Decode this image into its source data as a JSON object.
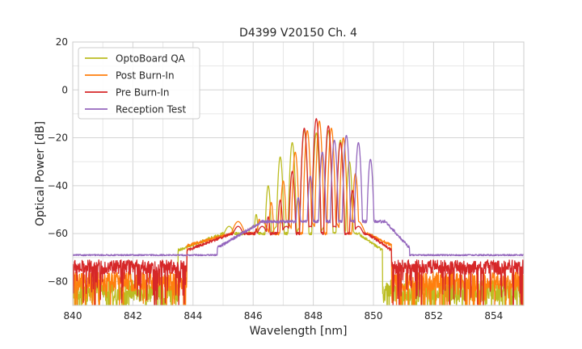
{
  "chart_data": {
    "type": "line",
    "title": "D4399 V20150 Ch. 4",
    "xlabel": "Wavelength [nm]",
    "ylabel": "Optical Power [dB]",
    "xlim": [
      840,
      855
    ],
    "ylim": [
      -90,
      20
    ],
    "xticks": [
      840,
      842,
      844,
      846,
      848,
      850,
      852,
      854
    ],
    "yticks": [
      -80,
      -60,
      -40,
      -20,
      0,
      20
    ],
    "grid": true,
    "legend_position": "top-left",
    "series": [
      {
        "name": "OptoBoard QA",
        "color": "#bcbd22",
        "noise_floor": -84,
        "noise_amp": 9,
        "peaks": [
          [
            845.6,
            -62
          ],
          [
            846.1,
            -52
          ],
          [
            846.5,
            -40
          ],
          [
            846.9,
            -28
          ],
          [
            847.3,
            -22
          ],
          [
            847.7,
            -17
          ],
          [
            848.1,
            -18
          ],
          [
            848.5,
            -17
          ],
          [
            848.9,
            -21
          ],
          [
            849.2,
            -30
          ]
        ],
        "envelope_low": -67,
        "envelope_high": -60,
        "band": [
          845.0,
          849.5
        ]
      },
      {
        "name": "Post Burn-In",
        "color": "#ff7f0e",
        "noise_floor": -80,
        "noise_amp": 8,
        "peaks": [
          [
            845.8,
            -62
          ],
          [
            846.2,
            -54
          ],
          [
            846.6,
            -47
          ],
          [
            847.0,
            -38
          ],
          [
            847.4,
            -26
          ],
          [
            847.8,
            -17
          ],
          [
            848.2,
            -13
          ],
          [
            848.6,
            -16
          ],
          [
            849.0,
            -20
          ],
          [
            849.4,
            -35
          ]
        ],
        "envelope_low": -65,
        "envelope_high": -60,
        "band": [
          845.3,
          849.8
        ]
      },
      {
        "name": "Pre Burn-In",
        "color": "#d62728",
        "noise_floor": -74,
        "noise_amp": 6,
        "peaks": [
          [
            845.7,
            -64
          ],
          [
            846.1,
            -58
          ],
          [
            846.5,
            -53
          ],
          [
            846.9,
            -46
          ],
          [
            847.3,
            -34
          ],
          [
            847.7,
            -16
          ],
          [
            848.1,
            -12
          ],
          [
            848.5,
            -15
          ],
          [
            848.9,
            -22
          ],
          [
            849.3,
            -42
          ]
        ],
        "envelope_low": -67,
        "envelope_high": -60,
        "band": [
          845.3,
          849.8
        ]
      },
      {
        "name": "Reception Test",
        "color": "#9467bd",
        "noise_floor": -69,
        "noise_amp": 0.6,
        "peaks": [
          [
            846.7,
            -62
          ],
          [
            847.1,
            -56
          ],
          [
            847.5,
            -45
          ],
          [
            847.9,
            -36
          ],
          [
            848.3,
            -26
          ],
          [
            848.7,
            -21
          ],
          [
            849.1,
            -19
          ],
          [
            849.5,
            -22
          ],
          [
            849.9,
            -29
          ]
        ],
        "envelope_low": -66,
        "envelope_high": -55,
        "band": [
          846.3,
          850.4
        ]
      }
    ]
  }
}
